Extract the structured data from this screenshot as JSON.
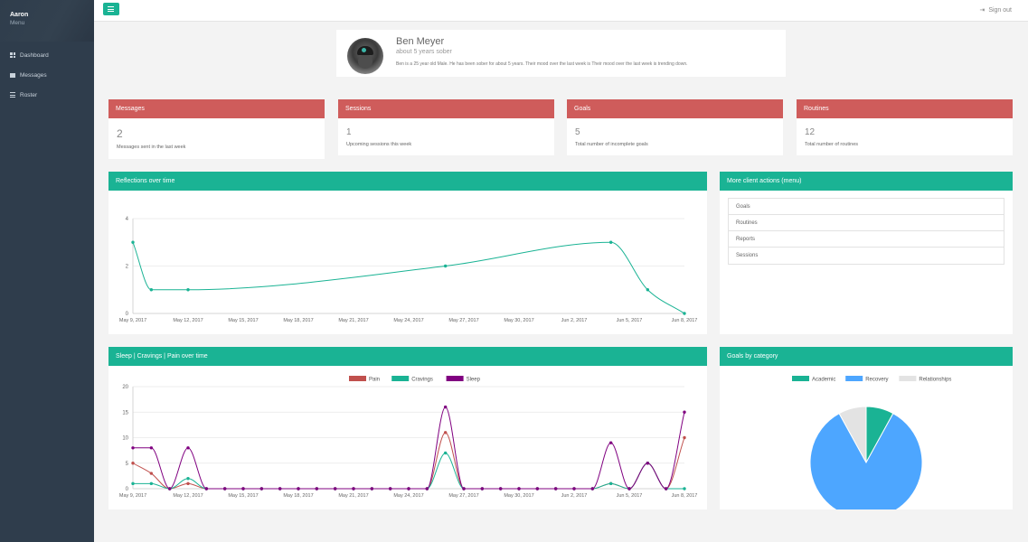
{
  "sidebar": {
    "user_name": "Aaron",
    "menu_label": "Menu",
    "items": [
      {
        "label": "Dashboard",
        "icon": "grid-icon"
      },
      {
        "label": "Messages",
        "icon": "envelope-icon"
      },
      {
        "label": "Roster",
        "icon": "list-icon"
      }
    ]
  },
  "topbar": {
    "signout_label": "Sign out"
  },
  "profile": {
    "name": "Ben Meyer",
    "subtitle": "about 5 years sober",
    "description": "Ben is a 25 year old Male. He has been sober for about 5 years. Their mood over the last week is Their mood over the last week is trending down."
  },
  "stats": [
    {
      "title": "Messages",
      "value": "2",
      "label": "Messages sent in the last week"
    },
    {
      "title": "Sessions",
      "value": "1",
      "label": "Upcoming sessions this week"
    },
    {
      "title": "Goals",
      "value": "5",
      "label": "Total number of incomplete goals"
    },
    {
      "title": "Routines",
      "value": "12",
      "label": "Total number of routines"
    }
  ],
  "panels": {
    "reflections_title": "Reflections over time",
    "actions_title": "More client actions (menu)",
    "sleep_title": "Sleep | Cravings | Pain over time",
    "goals_title": "Goals by category"
  },
  "actions": [
    "Goals",
    "Routines",
    "Reports",
    "Sessions"
  ],
  "colors": {
    "teal": "#1ab394",
    "red": "#cf5c5b",
    "pain": "#c0504d",
    "cravings": "#1ab394",
    "sleep": "#800080",
    "recovery": "#4da6ff",
    "relationships": "#e3e3e3"
  },
  "chart_data": [
    {
      "type": "line",
      "title": "Reflections over time",
      "x_ticks": [
        "May 9, 2017",
        "May 12, 2017",
        "May 15, 2017",
        "May 18, 2017",
        "May 21, 2017",
        "May 24, 2017",
        "May 27, 2017",
        "May 30, 2017",
        "Jun 2, 2017",
        "Jun 5, 2017",
        "Jun 8, 2017"
      ],
      "y_ticks": [
        0,
        2,
        4
      ],
      "ylim": [
        0,
        4
      ],
      "xlim": [
        "2017-05-09",
        "2017-06-08"
      ],
      "x": [
        "2017-05-09",
        "2017-05-10",
        "2017-05-12",
        "2017-05-26",
        "2017-06-04",
        "2017-06-06",
        "2017-06-08"
      ],
      "values": [
        3,
        1,
        1,
        2,
        3,
        1,
        0
      ],
      "color": "#1ab394"
    },
    {
      "type": "line",
      "title": "Sleep | Cravings | Pain over time",
      "x_ticks": [
        "May 9, 2017",
        "May 12, 2017",
        "May 15, 2017",
        "May 18, 2017",
        "May 21, 2017",
        "May 24, 2017",
        "May 27, 2017",
        "May 30, 2017",
        "Jun 2, 2017",
        "Jun 5, 2017",
        "Jun 8, 2017"
      ],
      "y_ticks": [
        0,
        5,
        10,
        15,
        20
      ],
      "ylim": [
        0,
        20
      ],
      "xlim": [
        "2017-05-09",
        "2017-06-08"
      ],
      "legend_position": "top",
      "x": [
        "2017-05-09",
        "2017-05-10",
        "2017-05-11",
        "2017-05-12",
        "2017-05-13",
        "2017-05-14",
        "2017-05-15",
        "2017-05-16",
        "2017-05-17",
        "2017-05-18",
        "2017-05-19",
        "2017-05-20",
        "2017-05-21",
        "2017-05-22",
        "2017-05-23",
        "2017-05-24",
        "2017-05-25",
        "2017-05-26",
        "2017-05-27",
        "2017-05-28",
        "2017-05-29",
        "2017-05-30",
        "2017-05-31",
        "2017-06-01",
        "2017-06-02",
        "2017-06-03",
        "2017-06-04",
        "2017-06-05",
        "2017-06-06",
        "2017-06-07",
        "2017-06-08"
      ],
      "series": [
        {
          "name": "Pain",
          "color": "#c0504d",
          "values": [
            5,
            3,
            0,
            1,
            0,
            0,
            0,
            0,
            0,
            0,
            0,
            0,
            0,
            0,
            0,
            0,
            0,
            11,
            0,
            0,
            0,
            0,
            0,
            0,
            0,
            0,
            1,
            0,
            5,
            0,
            10
          ]
        },
        {
          "name": "Cravings",
          "color": "#1ab394",
          "values": [
            1,
            1,
            0,
            2,
            0,
            0,
            0,
            0,
            0,
            0,
            0,
            0,
            0,
            0,
            0,
            0,
            0,
            7,
            0,
            0,
            0,
            0,
            0,
            0,
            0,
            0,
            1,
            0,
            5,
            0,
            0
          ]
        },
        {
          "name": "Sleep",
          "color": "#800080",
          "values": [
            8,
            8,
            0,
            8,
            0,
            0,
            0,
            0,
            0,
            0,
            0,
            0,
            0,
            0,
            0,
            0,
            0,
            16,
            0,
            0,
            0,
            0,
            0,
            0,
            0,
            0,
            9,
            0,
            5,
            0,
            15
          ]
        }
      ]
    },
    {
      "type": "pie",
      "title": "Goals by category",
      "legend_position": "top",
      "slices": [
        {
          "name": "Academic",
          "value": 8,
          "color": "#1ab394"
        },
        {
          "name": "Recovery",
          "value": 84,
          "color": "#4da6ff"
        },
        {
          "name": "Relationships",
          "value": 8,
          "color": "#e3e3e3"
        }
      ]
    }
  ]
}
